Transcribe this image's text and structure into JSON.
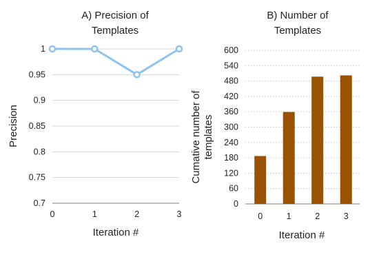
{
  "chart_data": [
    {
      "type": "line",
      "title_lines": [
        "A) Precision of",
        "Templates"
      ],
      "xlabel": "Iteration #",
      "ylabel": "Precision",
      "x": [
        0,
        1,
        2,
        3
      ],
      "x_ticks": [
        "0",
        "1",
        "2",
        "3"
      ],
      "y_ticks": [
        "1",
        "0.95",
        "0.9",
        "0.85",
        "0.8",
        "0.75",
        "0.7"
      ],
      "ylim": [
        0.7,
        1
      ],
      "grid": true,
      "series": [
        {
          "values": [
            1,
            1,
            0.95,
            1
          ],
          "color": "#8ec3f1",
          "marker": "open-circle"
        }
      ]
    },
    {
      "type": "bar",
      "title_lines": [
        "B) Number of",
        "Templates"
      ],
      "xlabel": "Iteration #",
      "ylabel_lines": [
        "Cumative number of",
        "templates"
      ],
      "categories": [
        "0",
        "1",
        "2",
        "3"
      ],
      "y_ticks": [
        "600",
        "540",
        "480",
        "420",
        "360",
        "300",
        "240",
        "180",
        "120",
        "60",
        "0"
      ],
      "ylim": [
        0,
        600
      ],
      "grid": true,
      "series": [
        {
          "values": [
            187,
            359,
            497,
            502
          ],
          "color": "#9a5100"
        }
      ]
    }
  ]
}
